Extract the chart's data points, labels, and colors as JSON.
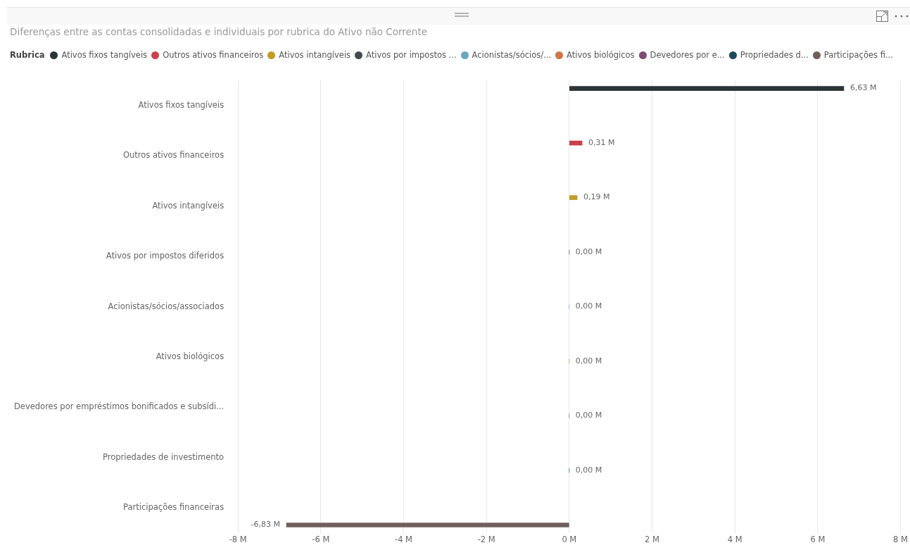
{
  "chart_data": {
    "type": "bar",
    "orientation": "horizontal",
    "title": "Diferenças entre as contas consolidadas e individuais por rubrica do Ativo não Corrente",
    "legend_title": "Rubrica",
    "legend": "top left",
    "grid": "x",
    "categories": [
      "Ativos fixos tangíveis",
      "Outros ativos financeiros",
      "Ativos intangíveis",
      "Ativos por impostos diferidos",
      "Acionistas/sócios/associados",
      "Ativos biológicos",
      "Devedores por empréstimos bonificados e subsídi...",
      "Propriedades de investimento",
      "Participações financeiras"
    ],
    "xlim": [
      -8,
      8
    ],
    "xticks": [
      {
        "value": -8,
        "label": "-8 M"
      },
      {
        "value": -6,
        "label": "-6 M"
      },
      {
        "value": -4,
        "label": "-4 M"
      },
      {
        "value": -2,
        "label": "-2 M"
      },
      {
        "value": 0,
        "label": "0 M"
      },
      {
        "value": 2,
        "label": "2 M"
      },
      {
        "value": 4,
        "label": "4 M"
      },
      {
        "value": 6,
        "label": "6 M"
      },
      {
        "value": 8,
        "label": "8 M"
      }
    ],
    "series": [
      {
        "name": "Ativos fixos tangíveis",
        "color": "#2b3437",
        "values": [
          6.63,
          null,
          null,
          null,
          null,
          null,
          null,
          null,
          null
        ],
        "value_labels": [
          "6,63 M",
          null,
          null,
          null,
          null,
          null,
          null,
          null,
          null
        ]
      },
      {
        "name": "Outros ativos financeiros",
        "color": "#c9414a",
        "values": [
          null,
          0.31,
          null,
          null,
          null,
          null,
          null,
          null,
          null
        ],
        "value_labels": [
          null,
          "0,31 M",
          null,
          null,
          null,
          null,
          null,
          null,
          null
        ]
      },
      {
        "name": "Ativos intangíveis",
        "color": "#c39b26",
        "values": [
          null,
          null,
          0.19,
          null,
          null,
          null,
          null,
          null,
          null
        ],
        "value_labels": [
          null,
          null,
          "0,19 M",
          null,
          null,
          null,
          null,
          null,
          null
        ]
      },
      {
        "name": "Ativos por impostos ...",
        "color": "#444b50",
        "values": [
          null,
          null,
          null,
          0,
          null,
          null,
          null,
          null,
          null
        ],
        "value_labels": [
          null,
          null,
          null,
          "0,00 M",
          null,
          null,
          null,
          null,
          null
        ]
      },
      {
        "name": "Acionistas/sócios/...",
        "color": "#6aa6bd",
        "values": [
          null,
          null,
          null,
          null,
          0,
          null,
          null,
          null,
          null
        ],
        "value_labels": [
          null,
          null,
          null,
          null,
          "0,00 M",
          null,
          null,
          null,
          null
        ]
      },
      {
        "name": "Ativos biológicos",
        "color": "#cf7546",
        "values": [
          null,
          null,
          null,
          null,
          null,
          0,
          null,
          null,
          null
        ],
        "value_labels": [
          null,
          null,
          null,
          null,
          null,
          "0,00 M",
          null,
          null,
          null
        ]
      },
      {
        "name": "Devedores por e...",
        "color": "#7e4a76",
        "values": [
          null,
          null,
          null,
          null,
          null,
          null,
          0,
          null,
          null
        ],
        "value_labels": [
          null,
          null,
          null,
          null,
          null,
          null,
          "0,00 M",
          null,
          null
        ]
      },
      {
        "name": "Propriedades d...",
        "color": "#1c4a5c",
        "values": [
          null,
          null,
          null,
          null,
          null,
          null,
          null,
          0,
          null
        ],
        "value_labels": [
          null,
          null,
          null,
          null,
          null,
          null,
          null,
          "0,00 M",
          null
        ]
      },
      {
        "name": "Participações fi...",
        "color": "#6e5f5d",
        "values": [
          null,
          null,
          null,
          null,
          null,
          null,
          null,
          null,
          -6.83
        ],
        "value_labels": [
          null,
          null,
          null,
          null,
          null,
          null,
          null,
          null,
          "-6,83 M"
        ]
      }
    ]
  }
}
